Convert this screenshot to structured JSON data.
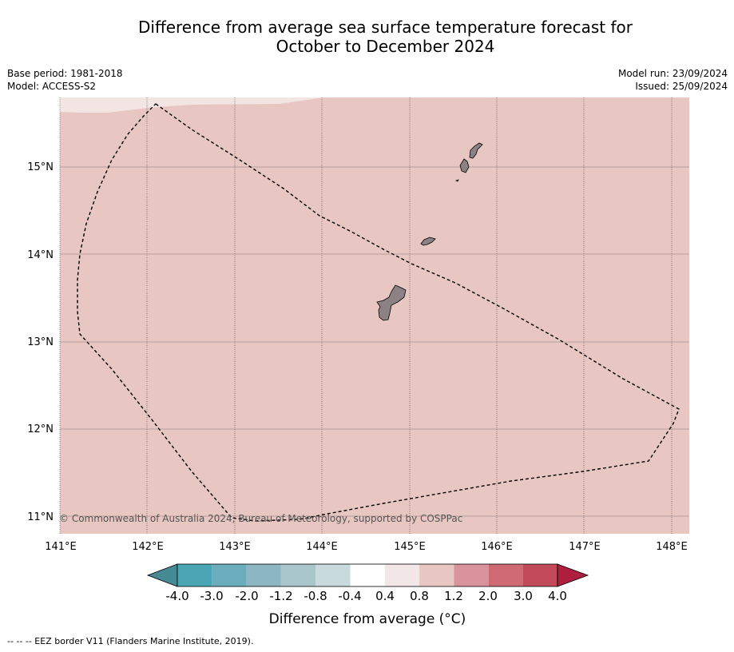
{
  "title": {
    "line1": "Difference from average sea surface temperature forecast for",
    "line2": "October to December 2024"
  },
  "meta": {
    "base_period": "Base period: 1981-2018",
    "model": "Model: ACCESS-S2",
    "model_run": "Model run: 23/09/2024",
    "issued": "Issued: 25/09/2024"
  },
  "map": {
    "lon_ticks": [
      "141°E",
      "142°E",
      "143°E",
      "144°E",
      "145°E",
      "146°E",
      "147°E",
      "148°E"
    ],
    "lat_ticks": [
      "15°N",
      "14°N",
      "13°N",
      "12°N",
      "11°N"
    ],
    "fill_color": "#e8c6c2",
    "light_band_color": "#f2e5e3",
    "land_color": "#8c8283",
    "credit": "© Commonwealth of Australia 2024, Bureau of Meteorology, supported by COSPPac"
  },
  "colorbar": {
    "tick_labels": [
      "-4.0",
      "-3.0",
      "-2.0",
      "-1.2",
      "-0.8",
      "-0.4",
      "0.4",
      "0.8",
      "1.2",
      "2.0",
      "3.0",
      "4.0"
    ],
    "colors": [
      "#468a96",
      "#4aa6b4",
      "#6badbc",
      "#8cb7c2",
      "#a9c7cb",
      "#c9dade",
      "#ffffff",
      "#f2e7e6",
      "#e8c6c2",
      "#d9939a",
      "#cd6a74",
      "#c1495a",
      "#b01e3f"
    ],
    "label": "Difference from average (°C)"
  },
  "footer": "--  --  -- EEZ border V11 (Flanders Marine Institute, 2019)."
}
